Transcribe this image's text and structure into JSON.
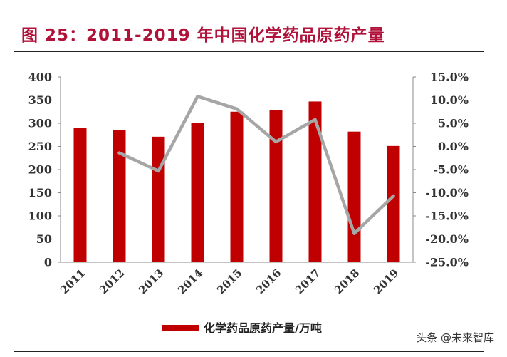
{
  "header": {
    "title": "图 25：2011-2019 年中国化学药品原药产量"
  },
  "watermark": "头条 @未来智库",
  "colors": {
    "bar": "#c00000",
    "line": "#a6a6a6",
    "title": "#b0123a"
  },
  "chart_data": {
    "type": "bar",
    "title": "",
    "xlabel": "",
    "ylabel": "",
    "categories": [
      "2011",
      "2012",
      "2013",
      "2014",
      "2015",
      "2016",
      "2017",
      "2018",
      "2019"
    ],
    "series": [
      {
        "name": "化学药品原药产量/万吨",
        "type": "bar",
        "axis": "left",
        "values": [
          290,
          286,
          271,
          300,
          325,
          328,
          347,
          282,
          251
        ]
      },
      {
        "name": "",
        "type": "line",
        "axis": "right",
        "values": [
          null,
          -1.4,
          -5.3,
          10.8,
          8.1,
          1.0,
          5.8,
          -18.8,
          -10.7
        ]
      }
    ],
    "ylim": [
      0,
      400
    ],
    "yticks": [
      "400",
      "350",
      "300",
      "250",
      "200",
      "150",
      "100",
      "50",
      "0"
    ],
    "y2lim": [
      -25,
      15
    ],
    "y2ticks": [
      "15.0%",
      "10.0%",
      "5.0%",
      "0.0%",
      "-5.0%",
      "-10.0%",
      "-15.0%",
      "-20.0%",
      "-25.0%"
    ],
    "grid": false,
    "legend": "bottom-center",
    "legend_label": "化学药品原药产量/万吨"
  }
}
